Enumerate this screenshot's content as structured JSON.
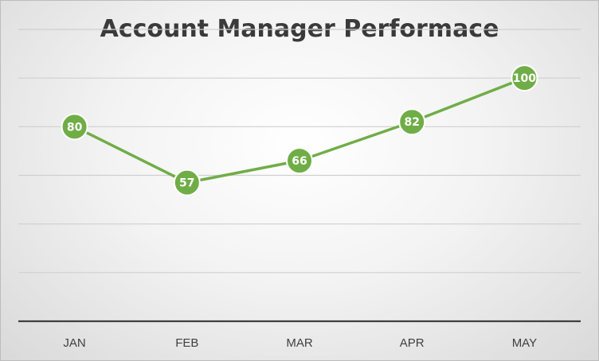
{
  "chart_data": {
    "type": "line",
    "title": "Account Manager Performace",
    "categories": [
      "JAN",
      "FEB",
      "MAR",
      "APR",
      "MAY"
    ],
    "series": [
      {
        "values": [
          80,
          57,
          66,
          82,
          100
        ]
      }
    ],
    "ylim": [
      0,
      120
    ],
    "y_gridline_step": 20,
    "grid": true,
    "y_tick_labels_shown": false,
    "legend": "none",
    "data_labels": "inside-markers",
    "colors": {
      "line": "#70ad47",
      "marker": "#70ad47",
      "marker_border": "#ffffff",
      "gridline": "#cfcfcf",
      "axis": "#404040"
    }
  }
}
